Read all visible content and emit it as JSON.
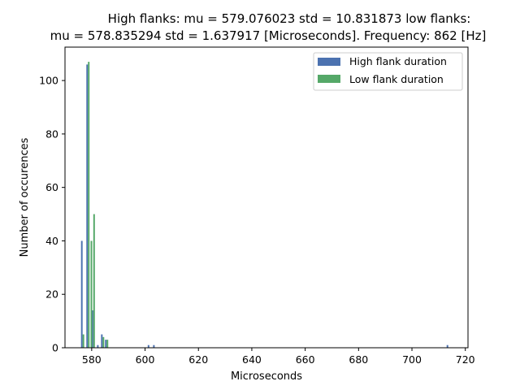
{
  "chart_data": {
    "type": "bar",
    "title_lines": [
      "High flanks: mu = 579.076023  std = 10.831873  low flanks:",
      "mu = 578.835294  std = 1.637917  [Microseconds]. Frequency: 862 [Hz]"
    ],
    "xlabel": "Microseconds",
    "ylabel": "Number of occurences",
    "xlim": [
      570,
      721
    ],
    "ylim": [
      0,
      112.5
    ],
    "xticks": [
      580,
      600,
      620,
      640,
      660,
      680,
      700,
      720
    ],
    "yticks": [
      0,
      20,
      40,
      60,
      80,
      100
    ],
    "legend_position": "upper right",
    "series": [
      {
        "name": "High flank duration",
        "color": "#4c72b0",
        "bars": [
          {
            "x": 576.0,
            "value": 40
          },
          {
            "x": 578.0,
            "value": 106
          },
          {
            "x": 580.0,
            "value": 14
          },
          {
            "x": 582.0,
            "value": 1
          },
          {
            "x": 583.5,
            "value": 5
          },
          {
            "x": 585.0,
            "value": 3
          },
          {
            "x": 601.0,
            "value": 1
          },
          {
            "x": 603.0,
            "value": 1
          },
          {
            "x": 713.0,
            "value": 1
          }
        ]
      },
      {
        "name": "Low flank duration",
        "color": "#55a868",
        "bars": [
          {
            "x": 576.6,
            "value": 5
          },
          {
            "x": 578.6,
            "value": 107
          },
          {
            "x": 579.6,
            "value": 40
          },
          {
            "x": 580.6,
            "value": 50
          },
          {
            "x": 584.1,
            "value": 4
          },
          {
            "x": 585.6,
            "value": 3
          }
        ]
      }
    ]
  }
}
